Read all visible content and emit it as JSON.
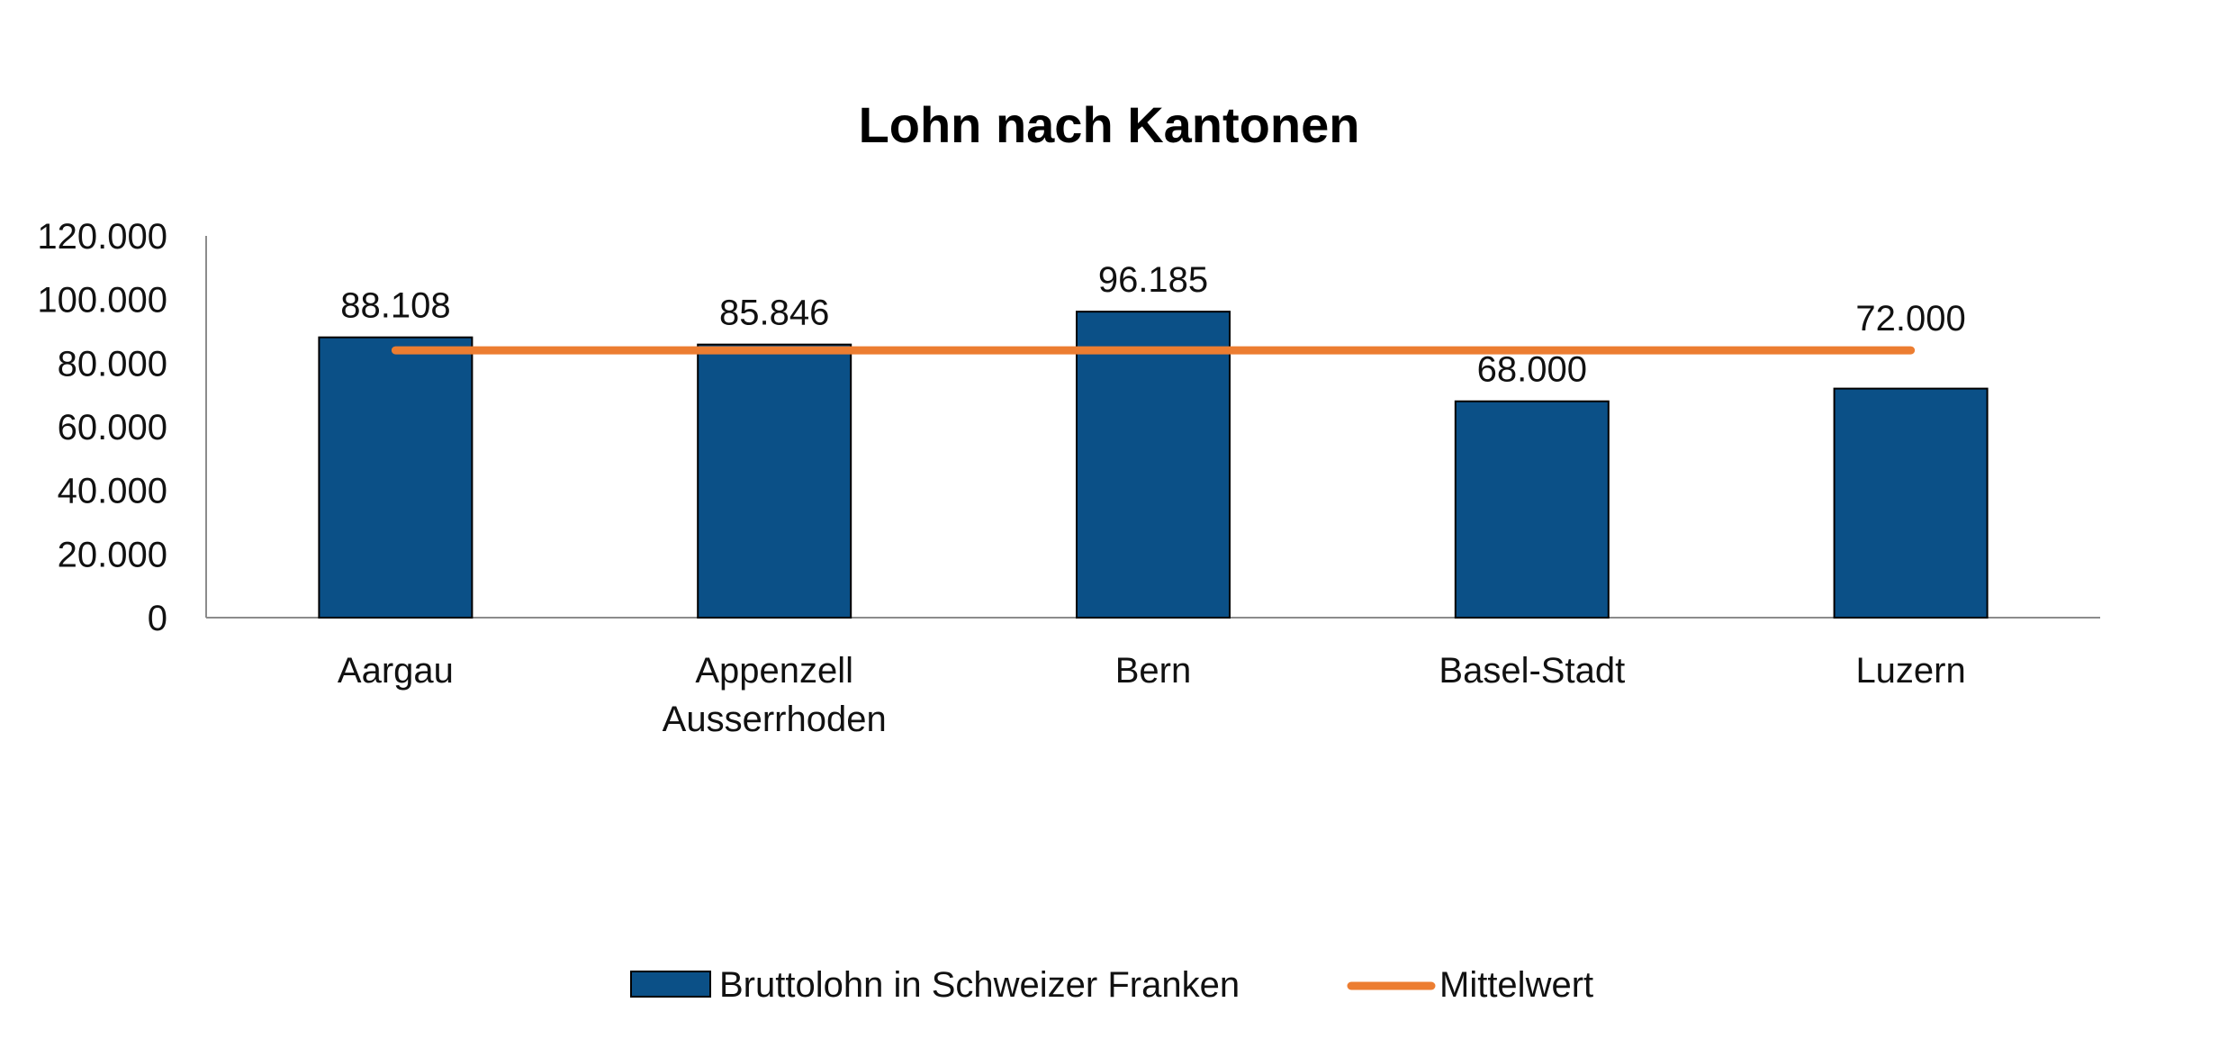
{
  "chart_data": {
    "type": "bar",
    "title": "Lohn nach Kantonen",
    "categories": [
      [
        "Aargau"
      ],
      [
        "Appenzell",
        "Ausserrhoden"
      ],
      [
        "Bern"
      ],
      [
        "Basel-Stadt"
      ],
      [
        "Luzern"
      ]
    ],
    "series": [
      {
        "name": "Bruttolohn in Schweizer Franken",
        "kind": "bar",
        "color": "#0b5087",
        "values": [
          88108,
          85846,
          96185,
          68000,
          72000
        ],
        "labels": [
          "88.108",
          "85.846",
          "96.185",
          "68.000",
          "72.000"
        ]
      },
      {
        "name": "Mittelwert",
        "kind": "line",
        "color": "#ec7d31",
        "values": [
          84028,
          84028,
          84028,
          84028,
          84028
        ]
      }
    ],
    "yticks": [
      0,
      20000,
      40000,
      60000,
      80000,
      100000,
      120000
    ],
    "ytick_labels": [
      "0",
      "20.000",
      "40.000",
      "60.000",
      "80.000",
      "100.000",
      "120.000"
    ],
    "ylim": [
      0,
      120000
    ],
    "xlabel": "",
    "ylabel": "",
    "grid": false,
    "legend_position": "bottom"
  }
}
